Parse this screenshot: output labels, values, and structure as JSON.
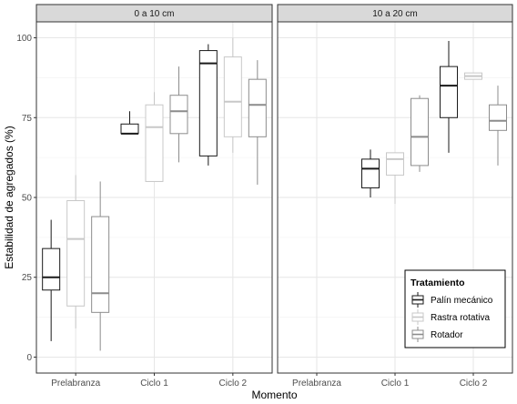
{
  "chart_data": {
    "type": "boxplot",
    "xlabel": "Momento",
    "ylabel": "Estabilidad de agregados (%)",
    "ylim": [
      -5,
      105
    ],
    "yticks": [
      0,
      25,
      50,
      75,
      100
    ],
    "categories": [
      "Prelabranza",
      "Ciclo 1",
      "Ciclo 2"
    ],
    "grid": true,
    "legend_position": "bottom-right",
    "legend_title": "Tratamiento",
    "series": [
      {
        "name": "Palín mecánico",
        "color": "#1a1a1a"
      },
      {
        "name": "Rastra rotativa",
        "color": "#c8c8c8"
      },
      {
        "name": "Rotador",
        "color": "#8c8c8c"
      }
    ],
    "panels": [
      {
        "title": "0 a 10 cm",
        "groups": [
          {
            "category": "Prelabranza",
            "boxes": [
              {
                "series": "Palín mecánico",
                "min": 5,
                "q1": 21,
                "median": 25,
                "q3": 34,
                "max": 43
              },
              {
                "series": "Rastra rotativa",
                "min": 9,
                "q1": 16,
                "median": 37,
                "q3": 49,
                "max": 57
              },
              {
                "series": "Rotador",
                "min": 2,
                "q1": 14,
                "median": 20,
                "q3": 44,
                "max": 55
              }
            ]
          },
          {
            "category": "Ciclo 1",
            "boxes": [
              {
                "series": "Palín mecánico",
                "min": 70,
                "q1": 70,
                "median": 70,
                "q3": 73,
                "max": 77
              },
              {
                "series": "Rastra rotativa",
                "min": 55,
                "q1": 55,
                "median": 72,
                "q3": 79,
                "max": 83
              },
              {
                "series": "Rotador",
                "min": 61,
                "q1": 70,
                "median": 77,
                "q3": 82,
                "max": 91
              }
            ]
          },
          {
            "category": "Ciclo 2",
            "boxes": [
              {
                "series": "Palín mecánico",
                "min": 60,
                "q1": 63,
                "median": 92,
                "q3": 96,
                "max": 98
              },
              {
                "series": "Rastra rotativa",
                "min": 64,
                "q1": 69,
                "median": 80,
                "q3": 94,
                "max": 100
              },
              {
                "series": "Rotador",
                "min": 54,
                "q1": 69,
                "median": 79,
                "q3": 87,
                "max": 93
              }
            ]
          }
        ]
      },
      {
        "title": "10 a 20 cm",
        "groups": [
          {
            "category": "Prelabranza",
            "boxes": []
          },
          {
            "category": "Ciclo 1",
            "boxes": [
              {
                "series": "Palín mecánico",
                "min": 50,
                "q1": 53,
                "median": 59,
                "q3": 62,
                "max": 65
              },
              {
                "series": "Rastra rotativa",
                "min": 48,
                "q1": 57,
                "median": 62,
                "q3": 64,
                "max": 64
              },
              {
                "series": "Rotador",
                "min": 58,
                "q1": 60,
                "median": 69,
                "q3": 81,
                "max": 82
              }
            ]
          },
          {
            "category": "Ciclo 2",
            "boxes": [
              {
                "series": "Palín mecánico",
                "min": 64,
                "q1": 75,
                "median": 85,
                "q3": 91,
                "max": 99
              },
              {
                "series": "Rastra rotativa",
                "min": 87,
                "q1": 87,
                "median": 88,
                "q3": 89,
                "max": 89
              },
              {
                "series": "Rotador",
                "min": 60,
                "q1": 71,
                "median": 74,
                "q3": 79,
                "max": 85
              }
            ]
          }
        ]
      }
    ]
  }
}
